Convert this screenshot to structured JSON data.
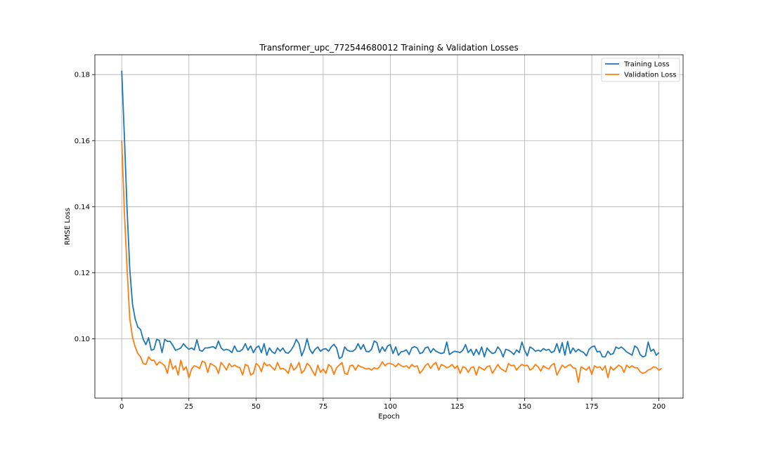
{
  "chart_data": {
    "type": "line",
    "title": "Transformer_upc_772544680012 Training & Validation Losses",
    "xlabel": "Epoch",
    "ylabel": "RMSE Loss",
    "xlim": [
      -10,
      209
    ],
    "ylim": [
      0.082,
      0.186
    ],
    "xticks": [
      0,
      25,
      50,
      75,
      100,
      125,
      150,
      175,
      200
    ],
    "yticks": [
      0.1,
      0.12,
      0.14,
      0.16,
      0.18
    ],
    "grid": true,
    "legend_position": "top-right",
    "series": [
      {
        "name": "Training Loss",
        "color": "#1f77b4",
        "x_start": 0,
        "values": [
          0.1812,
          0.161,
          0.139,
          0.121,
          0.1105,
          0.106,
          0.1035,
          0.1028,
          0.0998,
          0.0982,
          0.1003,
          0.0965,
          0.0968,
          0.0998,
          0.0995,
          0.0958,
          0.0998,
          0.0992,
          0.0992,
          0.098,
          0.0965,
          0.0968,
          0.0972,
          0.0985,
          0.0975,
          0.0968,
          0.0972,
          0.0966,
          0.0997,
          0.0965,
          0.0962,
          0.0972,
          0.0972,
          0.0974,
          0.0976,
          0.097,
          0.0993,
          0.0972,
          0.0965,
          0.0968,
          0.0965,
          0.0958,
          0.0978,
          0.0962,
          0.0962,
          0.0968,
          0.0985,
          0.0965,
          0.0978,
          0.0958,
          0.0972,
          0.0978,
          0.0958,
          0.0985,
          0.095,
          0.0972,
          0.096,
          0.0955,
          0.0972,
          0.0962,
          0.0972,
          0.0958,
          0.0956,
          0.0965,
          0.0978,
          0.0998,
          0.0985,
          0.0948,
          0.0968,
          0.1,
          0.0968,
          0.0955,
          0.0968,
          0.0975,
          0.0962,
          0.0968,
          0.097,
          0.0962,
          0.0975,
          0.0983,
          0.0972,
          0.094,
          0.0945,
          0.0975,
          0.0965,
          0.0962,
          0.0962,
          0.0968,
          0.0985,
          0.0968,
          0.0982,
          0.0962,
          0.096,
          0.0968,
          0.0993,
          0.0988,
          0.0958,
          0.0975,
          0.0962,
          0.0978,
          0.0982,
          0.0955,
          0.0975,
          0.095,
          0.096,
          0.0962,
          0.0966,
          0.0952,
          0.0972,
          0.0976,
          0.0972,
          0.0955,
          0.0958,
          0.0972,
          0.0975,
          0.0958,
          0.097,
          0.0962,
          0.0958,
          0.0955,
          0.0958,
          0.099,
          0.0952,
          0.0958,
          0.0962,
          0.096,
          0.0958,
          0.0965,
          0.0982,
          0.0958,
          0.0968,
          0.095,
          0.0968,
          0.0952,
          0.0975,
          0.0945,
          0.0972,
          0.0962,
          0.0955,
          0.0958,
          0.0975,
          0.0965,
          0.0945,
          0.0968,
          0.0965,
          0.096,
          0.0952,
          0.0966,
          0.0958,
          0.099,
          0.0965,
          0.0948,
          0.0975,
          0.097,
          0.0962,
          0.0965,
          0.0962,
          0.097,
          0.0965,
          0.0968,
          0.0958,
          0.0962,
          0.0985,
          0.0958,
          0.0988,
          0.095,
          0.0992,
          0.0955,
          0.0972,
          0.096,
          0.0968,
          0.0962,
          0.0958,
          0.0948,
          0.0968,
          0.0975,
          0.0978,
          0.096,
          0.0962,
          0.0945,
          0.0945,
          0.0962,
          0.0952,
          0.0955,
          0.0975,
          0.097,
          0.0975,
          0.0968,
          0.096,
          0.0955,
          0.095,
          0.0978,
          0.0972,
          0.0952,
          0.0945,
          0.0948,
          0.099,
          0.0962,
          0.0968,
          0.095,
          0.0958
        ]
      },
      {
        "name": "Validation Loss",
        "color": "#ff7f0e",
        "x_start": 0,
        "values": [
          0.16,
          0.138,
          0.121,
          0.106,
          0.1005,
          0.0975,
          0.0955,
          0.0945,
          0.0925,
          0.0922,
          0.0945,
          0.0935,
          0.0935,
          0.092,
          0.093,
          0.0925,
          0.0918,
          0.0895,
          0.0938,
          0.0908,
          0.0918,
          0.089,
          0.0935,
          0.0905,
          0.0915,
          0.0882,
          0.0908,
          0.0918,
          0.0915,
          0.091,
          0.0932,
          0.0928,
          0.0898,
          0.0925,
          0.092,
          0.0915,
          0.0895,
          0.0928,
          0.0918,
          0.0905,
          0.0925,
          0.0915,
          0.092,
          0.0915,
          0.0912,
          0.089,
          0.0922,
          0.0918,
          0.089,
          0.0895,
          0.0925,
          0.0918,
          0.09,
          0.0928,
          0.0918,
          0.0922,
          0.0912,
          0.0905,
          0.0928,
          0.0908,
          0.091,
          0.0905,
          0.0895,
          0.0925,
          0.0905,
          0.0912,
          0.0928,
          0.0895,
          0.0905,
          0.0925,
          0.0918,
          0.0902,
          0.0888,
          0.092,
          0.0898,
          0.0908,
          0.0895,
          0.0922,
          0.0915,
          0.0892,
          0.0912,
          0.092,
          0.0928,
          0.0895,
          0.0892,
          0.0918,
          0.092,
          0.0905,
          0.092,
          0.0915,
          0.0912,
          0.0908,
          0.091,
          0.0905,
          0.0912,
          0.0908,
          0.0915,
          0.093,
          0.0918,
          0.0925,
          0.0925,
          0.0922,
          0.0915,
          0.0925,
          0.0918,
          0.0915,
          0.0918,
          0.091,
          0.0922,
          0.0915,
          0.0918,
          0.0895,
          0.0905,
          0.0918,
          0.0925,
          0.091,
          0.0922,
          0.0928,
          0.0905,
          0.0922,
          0.0918,
          0.0912,
          0.0915,
          0.0922,
          0.091,
          0.0918,
          0.0895,
          0.0915,
          0.0912,
          0.0898,
          0.0912,
          0.0915,
          0.089,
          0.0915,
          0.091,
          0.0905,
          0.0915,
          0.0918,
          0.0895,
          0.0908,
          0.0922,
          0.091,
          0.0905,
          0.09,
          0.0925,
          0.0918,
          0.092,
          0.0905,
          0.0915,
          0.0922,
          0.0918,
          0.092,
          0.0905,
          0.091,
          0.0922,
          0.0915,
          0.0902,
          0.0918,
          0.0912,
          0.0908,
          0.092,
          0.0925,
          0.089,
          0.0905,
          0.092,
          0.0912,
          0.0918,
          0.0922,
          0.0912,
          0.091,
          0.0868,
          0.0915,
          0.091,
          0.0905,
          0.0915,
          0.0892,
          0.0918,
          0.0912,
          0.0915,
          0.0905,
          0.0918,
          0.0882,
          0.0915,
          0.0905,
          0.0912,
          0.092,
          0.0915,
          0.0898,
          0.092,
          0.0912,
          0.0918,
          0.0912,
          0.0912,
          0.09,
          0.0895,
          0.0898,
          0.0905,
          0.0908,
          0.0915,
          0.0912,
          0.0905,
          0.091
        ]
      }
    ]
  }
}
